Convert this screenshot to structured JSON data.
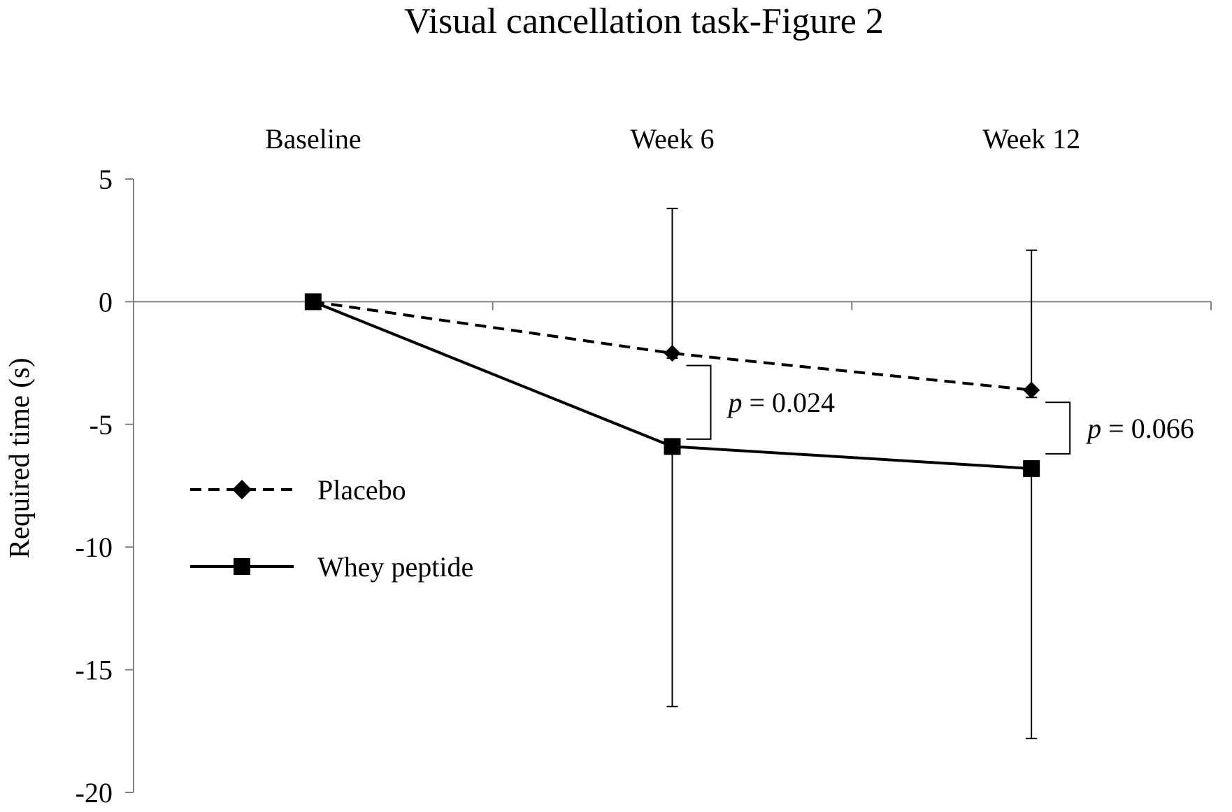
{
  "chart_data": {
    "type": "line",
    "title": "Visual cancellation task-Figure 2",
    "xlabel": "",
    "ylabel": "Required time (s)",
    "categories": [
      "Baseline",
      "Week 6",
      "Week 12"
    ],
    "ylim": [
      -20,
      5
    ],
    "yticks": [
      5,
      0,
      -5,
      -10,
      -15,
      -20
    ],
    "x_axis_crosses_at": 0,
    "category_labels_position": "top",
    "grid": false,
    "legend_position": "center-left",
    "series": [
      {
        "name": "Placebo",
        "values": [
          0,
          -2.1,
          -3.6
        ],
        "line_style": "dashed",
        "marker": "diamond",
        "color": "#000000",
        "error_bars": [
          null,
          [
            -2.3,
            3.8
          ],
          [
            -3.9,
            2.1
          ]
        ]
      },
      {
        "name": "Whey peptide",
        "values": [
          0,
          -5.9,
          -6.8
        ],
        "line_style": "solid",
        "marker": "square",
        "color": "#000000",
        "error_bars": [
          null,
          [
            -16.5,
            -5.9
          ],
          [
            -17.8,
            -6.8
          ]
        ]
      }
    ],
    "annotations": [
      {
        "category_index": 1,
        "label_italic": "p",
        "label_rest": " = 0.024",
        "y_top": -2.6,
        "y_bottom": -5.6
      },
      {
        "category_index": 2,
        "label_italic": "p",
        "label_rest": " = 0.066",
        "y_top": -4.1,
        "y_bottom": -6.2
      }
    ],
    "colors": {
      "axis": "#808080",
      "ink": "#000000",
      "background": "#ffffff"
    }
  }
}
